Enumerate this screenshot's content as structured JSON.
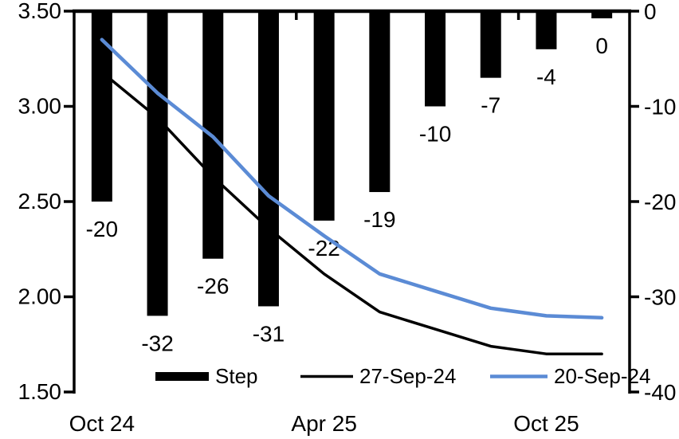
{
  "chart_data": {
    "type": "bar+line combo",
    "title": "",
    "n_categories": 10,
    "grid": false,
    "background_color": "#ffffff",
    "left_axis": {
      "side": "left",
      "min": 1.5,
      "max": 3.5,
      "ticks": [
        "3.50",
        "3.00",
        "2.50",
        "2.00",
        "1.50"
      ]
    },
    "right_axis": {
      "side": "right",
      "min": -40,
      "max": 0,
      "ticks": [
        "0",
        "-10",
        "-20",
        "-30",
        "-40"
      ]
    },
    "x_labels": [
      {
        "index": 0,
        "label": "Oct 24"
      },
      {
        "index": 4,
        "label": "Apr 25"
      },
      {
        "index": 8,
        "label": "Oct 25"
      }
    ],
    "bar_series": {
      "name": "Step",
      "axis": "right",
      "color": "#000000",
      "values": [
        -20,
        -32,
        -26,
        -31,
        -22,
        -19,
        -10,
        -7,
        -4,
        0
      ],
      "labels": [
        "-20",
        "-32",
        "-26",
        "-31",
        "-22",
        "-19",
        "-10",
        "-7",
        "-4",
        "0"
      ]
    },
    "line_series": [
      {
        "name": "27-Sep-24",
        "axis": "left",
        "color": "#000000",
        "stroke_width": 3.5,
        "values": [
          3.18,
          2.94,
          2.63,
          2.36,
          2.12,
          1.92,
          1.83,
          1.74,
          1.7,
          1.7
        ]
      },
      {
        "name": "20-Sep-24",
        "axis": "left",
        "color": "#5B8BD5",
        "stroke_width": 4.5,
        "values": [
          3.35,
          3.07,
          2.84,
          2.53,
          2.32,
          2.12,
          2.03,
          1.94,
          1.9,
          1.89
        ]
      }
    ],
    "legend": {
      "position": "bottom-inside",
      "items": [
        {
          "label": "Step",
          "swatch": "bar",
          "color": "#000000"
        },
        {
          "label": "27-Sep-24",
          "swatch": "line",
          "color": "#000000"
        },
        {
          "label": "20-Sep-24",
          "swatch": "line",
          "color": "#5B8BD5"
        }
      ]
    }
  }
}
